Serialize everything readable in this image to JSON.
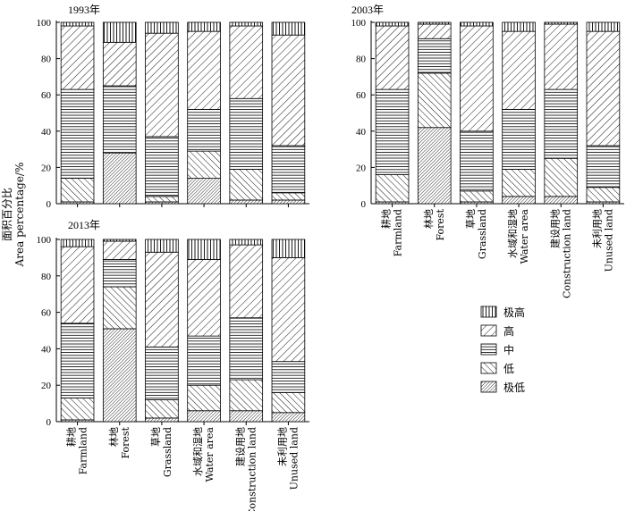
{
  "chart_data": [
    {
      "type": "bar",
      "stacked": true,
      "title": "1993年",
      "ylim": [
        0,
        100
      ],
      "yticks": [
        "0",
        "20",
        "40",
        "60",
        "80",
        "100"
      ],
      "categories": [
        {
          "zh": "耕地",
          "en": "Farmland"
        },
        {
          "zh": "林地",
          "en": "Forest"
        },
        {
          "zh": "草地",
          "en": "Grassland"
        },
        {
          "zh": "水域和湿地",
          "en": "Water area"
        },
        {
          "zh": "建设用地",
          "en": "Construction land"
        },
        {
          "zh": "未利用地",
          "en": "Unused land"
        }
      ],
      "series": [
        {
          "name": "极低",
          "values": [
            1,
            28,
            1,
            14,
            2,
            2
          ]
        },
        {
          "name": "低",
          "values": [
            13,
            0,
            3,
            15,
            17,
            4
          ]
        },
        {
          "name": "中",
          "values": [
            49,
            37,
            33,
            23,
            39,
            26
          ]
        },
        {
          "name": "高",
          "values": [
            35,
            24,
            57,
            43,
            40,
            61
          ]
        },
        {
          "name": "极高",
          "values": [
            2,
            11,
            6,
            5,
            2,
            7
          ]
        }
      ],
      "show_category_labels": false
    },
    {
      "type": "bar",
      "stacked": true,
      "title": "2003年",
      "ylim": [
        0,
        100
      ],
      "yticks": [
        "0",
        "20",
        "40",
        "60",
        "80",
        "100"
      ],
      "categories": [
        {
          "zh": "耕地",
          "en": "Farmland"
        },
        {
          "zh": "林地",
          "en": "Forest"
        },
        {
          "zh": "草地",
          "en": "Grassland"
        },
        {
          "zh": "水域和湿地",
          "en": "Water area"
        },
        {
          "zh": "建设用地",
          "en": "Construction land"
        },
        {
          "zh": "未利用地",
          "en": "Unused land"
        }
      ],
      "series": [
        {
          "name": "极低",
          "values": [
            1,
            42,
            1,
            4,
            4,
            1
          ]
        },
        {
          "name": "低",
          "values": [
            15,
            30,
            6,
            15,
            21,
            8
          ]
        },
        {
          "name": "中",
          "values": [
            47,
            19,
            33,
            33,
            38,
            23
          ]
        },
        {
          "name": "高",
          "values": [
            35,
            8,
            58,
            43,
            36,
            63
          ]
        },
        {
          "name": "极高",
          "values": [
            2,
            1,
            2,
            5,
            1,
            5
          ]
        }
      ],
      "show_category_labels": true
    },
    {
      "type": "bar",
      "stacked": true,
      "title": "2013年",
      "ylim": [
        0,
        100
      ],
      "yticks": [
        "0",
        "20",
        "40",
        "60",
        "80",
        "100"
      ],
      "categories": [
        {
          "zh": "耕地",
          "en": "Farmland"
        },
        {
          "zh": "林地",
          "en": "Forest"
        },
        {
          "zh": "草地",
          "en": "Grassland"
        },
        {
          "zh": "水域和湿地",
          "en": "Water area"
        },
        {
          "zh": "建设用地",
          "en": "Construction land"
        },
        {
          "zh": "未利用地",
          "en": "Unused land"
        }
      ],
      "series": [
        {
          "name": "极低",
          "values": [
            1,
            51,
            2,
            6,
            6,
            5
          ]
        },
        {
          "name": "低",
          "values": [
            12,
            23,
            10,
            14,
            17,
            11
          ]
        },
        {
          "name": "中",
          "values": [
            41,
            15,
            29,
            27,
            34,
            17
          ]
        },
        {
          "name": "高",
          "values": [
            42,
            10,
            52,
            42,
            40,
            57
          ]
        },
        {
          "name": "极高",
          "values": [
            4,
            1,
            7,
            11,
            3,
            10
          ]
        }
      ],
      "show_category_labels": true
    }
  ],
  "ylabel_zh": "面积百分比",
  "ylabel_en": "Area percentage/%",
  "legend": {
    "placement": "right",
    "items": [
      {
        "name": "极高",
        "pattern": "vertical"
      },
      {
        "name": "高",
        "pattern": "forward-diagonal"
      },
      {
        "name": "中",
        "pattern": "horizontal"
      },
      {
        "name": "低",
        "pattern": "back-diagonal"
      },
      {
        "name": "极低",
        "pattern": "dense-diagonal"
      }
    ]
  }
}
